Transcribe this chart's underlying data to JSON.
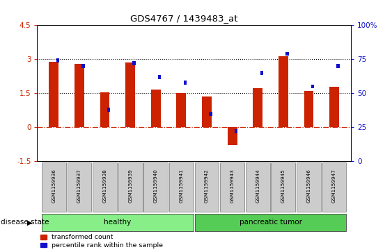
{
  "title": "GDS4767 / 1439483_at",
  "samples": [
    "GSM1159936",
    "GSM1159937",
    "GSM1159938",
    "GSM1159939",
    "GSM1159940",
    "GSM1159941",
    "GSM1159942",
    "GSM1159943",
    "GSM1159944",
    "GSM1159945",
    "GSM1159946",
    "GSM1159947"
  ],
  "transformed_count": [
    2.9,
    2.8,
    1.55,
    2.85,
    1.65,
    1.52,
    1.35,
    -0.8,
    1.72,
    3.12,
    1.6,
    1.8
  ],
  "percentile_rank": [
    74,
    70,
    38,
    72,
    62,
    58,
    35,
    22,
    65,
    79,
    55,
    70
  ],
  "ylim_left": [
    -1.5,
    4.5
  ],
  "ylim_right": [
    0,
    100
  ],
  "bar_color_red": "#cc2200",
  "bar_color_blue": "#1010cc",
  "healthy_label": "healthy",
  "tumor_label": "pancreatic tumor",
  "healthy_color": "#88ee88",
  "tumor_color": "#55cc55",
  "disease_state_label": "disease state",
  "legend_red_label": "transformed count",
  "legend_blue_label": "percentile rank within the sample",
  "right_yticks": [
    0,
    25,
    50,
    75,
    100
  ],
  "right_yticklabels": [
    "0",
    "25",
    "50",
    "75",
    "100%"
  ],
  "left_yticks": [
    -1.5,
    0,
    1.5,
    3.0,
    4.5
  ],
  "left_yticklabels": [
    "-1.5",
    "0",
    "1.5",
    "3",
    "4.5"
  ]
}
